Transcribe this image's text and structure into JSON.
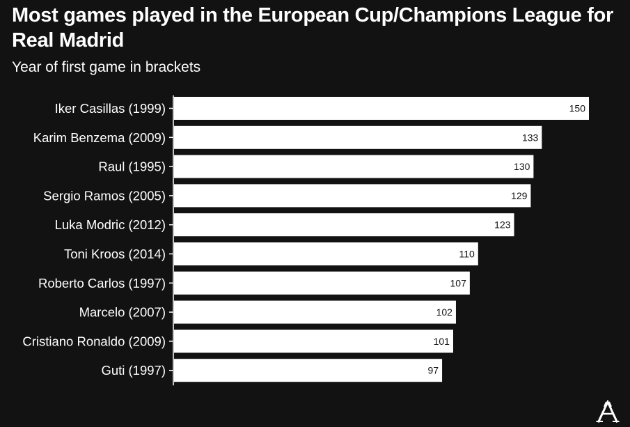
{
  "header": {
    "title": "Most games played in the European Cup/Champions League for Real Madrid",
    "subtitle": "Year of first game in brackets"
  },
  "chart_data": {
    "type": "bar",
    "orientation": "horizontal",
    "categories": [
      "Iker Casillas (1999)",
      "Karim Benzema (2009)",
      "Raul (1995)",
      "Sergio Ramos (2005)",
      "Luka Modric (2012)",
      "Toni Kroos (2014)",
      "Roberto Carlos (1997)",
      "Marcelo (2007)",
      "Cristiano Ronaldo (2009)",
      "Guti (1997)"
    ],
    "values": [
      150,
      133,
      130,
      129,
      123,
      110,
      107,
      102,
      101,
      97
    ],
    "title": "Most games played in the European Cup/Champions League for Real Madrid",
    "subtitle": "Year of first game in brackets",
    "xlim": [
      0,
      150
    ],
    "grid": false,
    "data_labels": true
  },
  "colors": {
    "background": "#121212",
    "bar": "#ffffff",
    "text": "#ffffff",
    "data_label": "#121212"
  },
  "logo": {
    "icon": "the-athletic-logo-icon"
  }
}
